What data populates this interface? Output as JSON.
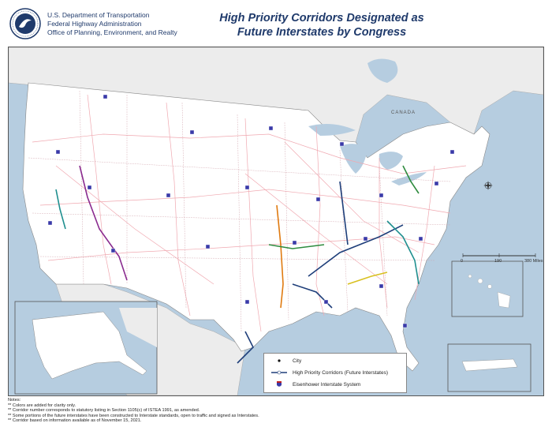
{
  "header": {
    "agency_lines": [
      "U.S. Department of Transportation",
      "Federal Highway Administration",
      "Office of Planning, Environment, and Realty"
    ],
    "title_line1": "High Priority Corridors Designated as",
    "title_line2": "Future Interstates by Congress"
  },
  "map": {
    "country_label": "CANADA",
    "scale": {
      "ticks": [
        "0",
        "190",
        "380 Miles"
      ]
    },
    "colors": {
      "water": "#b6cde0",
      "land_us": "#ffffff",
      "land_other": "#ececec",
      "corridor_blue": "#1f3f7a",
      "corridor_green": "#2e8b3e",
      "corridor_teal": "#1f8f8f",
      "corridor_orange": "#e07a10",
      "corridor_purple": "#8a2b8f",
      "corridor_yellow": "#d8c020",
      "interstate_shield": "#3a3aa8",
      "roads": "#f0a8b0"
    }
  },
  "legend": {
    "items": [
      {
        "symbol": "city-dot",
        "label": "City"
      },
      {
        "symbol": "corridor-line",
        "label": "High Priority Corridors (Future Interstates)"
      },
      {
        "symbol": "interstate-shield",
        "label": "Eisenhower Interstate System"
      }
    ]
  },
  "notes": {
    "heading": "Notes:",
    "lines": [
      "** Colors are added for clarity only.",
      "** Corridor number corresponds to statutory listing in Section 1105(c) of ISTEA 1991, as amended.",
      "** Some portions of the future interstates have been constructed to Interstate standards, open to traffic and signed as Interstates.",
      "** Corridor based on information available as of November 15, 2021."
    ]
  }
}
